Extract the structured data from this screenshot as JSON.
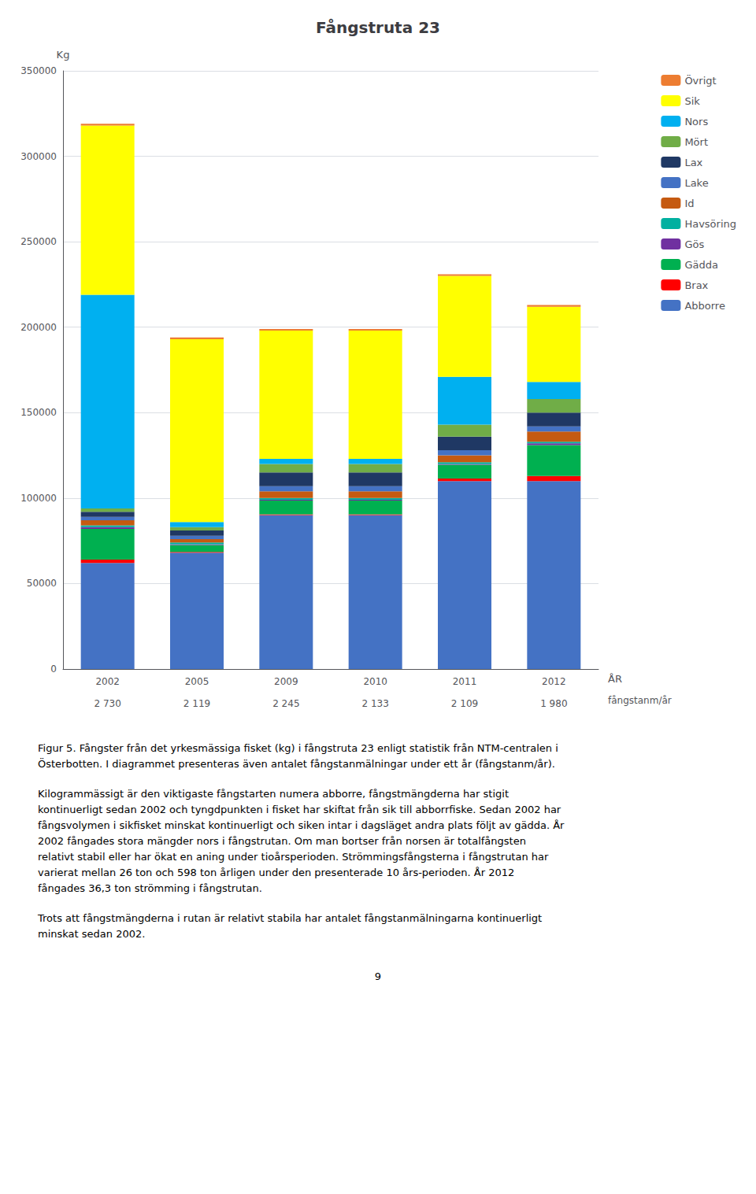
{
  "chart_data": {
    "type": "bar",
    "title": "Fångstruta 23",
    "categories": [
      "2002",
      "2005",
      "2009",
      "2010",
      "2011",
      "2012"
    ],
    "xlabel": "ÅR",
    "ylabel": "Kg",
    "secondary_x": {
      "label": "fångstanm/år",
      "categories": [
        "2 730",
        "2 119",
        "2 245",
        "2 133",
        "2 109",
        "1 980"
      ]
    },
    "stacked": true,
    "grid": true,
    "legend": "right",
    "ylim": [
      0,
      350000
    ],
    "yticks": [
      0,
      50000,
      100000,
      150000,
      200000,
      250000,
      300000,
      350000
    ],
    "series": [
      {
        "name": "Abborre",
        "color": "#4472C4",
        "values": [
          62000,
          68000,
          90000,
          90000,
          110000,
          110000
        ]
      },
      {
        "name": "Brax",
        "color": "#FF0000",
        "values": [
          2000,
          500,
          500,
          500,
          1500,
          3000
        ]
      },
      {
        "name": "Gädda",
        "color": "#00B050",
        "values": [
          18000,
          4000,
          8000,
          8000,
          8000,
          18000
        ]
      },
      {
        "name": "Gös",
        "color": "#7030A0",
        "values": [
          1000,
          500,
          500,
          500,
          500,
          1000
        ]
      },
      {
        "name": "Havsöring",
        "color": "#00B0A0",
        "values": [
          1000,
          1000,
          1000,
          1000,
          1000,
          1000
        ]
      },
      {
        "name": "Id",
        "color": "#C55A11",
        "values": [
          3000,
          2000,
          4000,
          4000,
          4000,
          6000
        ]
      },
      {
        "name": "Lake",
        "color": "#4472C4",
        "values": [
          2000,
          2000,
          3000,
          3000,
          3000,
          3000
        ]
      },
      {
        "name": "Lax",
        "color": "#1F3864",
        "values": [
          3000,
          3000,
          8000,
          8000,
          8000,
          8000
        ]
      },
      {
        "name": "Mört",
        "color": "#70AD47",
        "values": [
          2000,
          2000,
          5000,
          5000,
          7000,
          8000
        ]
      },
      {
        "name": "Nors",
        "color": "#00B0F0",
        "values": [
          125000,
          3000,
          3000,
          3000,
          28000,
          10000
        ]
      },
      {
        "name": "Sik",
        "color": "#FFFF00",
        "values": [
          99000,
          107000,
          75000,
          75000,
          59000,
          44000
        ]
      },
      {
        "name": "Övrigt",
        "color": "#ED7D31",
        "values": [
          1000,
          1000,
          1000,
          1000,
          1000,
          1000
        ]
      }
    ],
    "annotations": [
      "Figur 5. Fångster från det yrkesmässiga fisket (kg) i fångstruta 23 enligt statistik från NTM-centralen i\nÖsterbotten. I diagrammet presenteras även antalet fångstanmälningar under ett år (fångstanm/år).",
      "Kilogrammässigt är den viktigaste fångstarten numera abborre, fångstmängderna har stigit\nkontinuerligt sedan 2002 och tyngdpunkten i fisket har skiftat från sik till abborrfiske. Sedan 2002 har\nfångsvolymen i sikfisket minskat kontinuerligt och siken intar i dagsläget andra plats följt av gädda. År\n2002 fångades stora mängder nors i fångstrutan. Om man bortser från norsen är totalfångsten\nrelativt stabil eller har ökat en aning under tioårsperioden. Strömmingsfångsterna i fångstrutan har\nvarierat mellan 26 ton och 598 ton årligen under den presenterade 10 års-perioden. År 2012\nfångades 36,3 ton strömming i fångstrutan.",
      "Trots att fångstmängderna i rutan är relativt stabila har antalet fångstanmälningarna kontinuerligt\nminskat sedan 2002."
    ],
    "page_number": "9"
  }
}
